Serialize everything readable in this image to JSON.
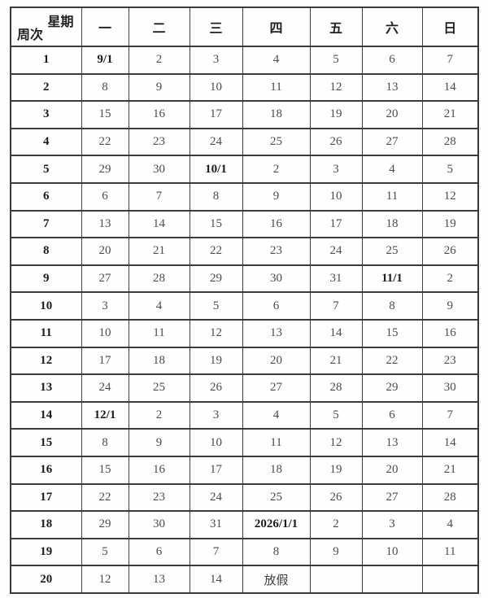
{
  "table": {
    "corner_top_right": "星期",
    "corner_bottom_left": "周次",
    "day_headers": [
      "一",
      "二",
      "三",
      "四",
      "五",
      "六",
      "日"
    ],
    "holiday_label": "放假",
    "colors": {
      "border": "#3a3a3a",
      "text_regular": "#4c4c4c",
      "text_bold": "#1c1c1c",
      "background": "#fdfdfd"
    },
    "rows": [
      {
        "week": "1",
        "days": [
          "9/1",
          "2",
          "3",
          "4",
          "5",
          "6",
          "7"
        ],
        "bold_day": 0
      },
      {
        "week": "2",
        "days": [
          "8",
          "9",
          "10",
          "11",
          "12",
          "13",
          "14"
        ],
        "bold_day": -1
      },
      {
        "week": "3",
        "days": [
          "15",
          "16",
          "17",
          "18",
          "19",
          "20",
          "21"
        ],
        "bold_day": -1
      },
      {
        "week": "4",
        "days": [
          "22",
          "23",
          "24",
          "25",
          "26",
          "27",
          "28"
        ],
        "bold_day": -1
      },
      {
        "week": "5",
        "days": [
          "29",
          "30",
          "10/1",
          "2",
          "3",
          "4",
          "5"
        ],
        "bold_day": 2
      },
      {
        "week": "6",
        "days": [
          "6",
          "7",
          "8",
          "9",
          "10",
          "11",
          "12"
        ],
        "bold_day": -1
      },
      {
        "week": "7",
        "days": [
          "13",
          "14",
          "15",
          "16",
          "17",
          "18",
          "19"
        ],
        "bold_day": -1
      },
      {
        "week": "8",
        "days": [
          "20",
          "21",
          "22",
          "23",
          "24",
          "25",
          "26"
        ],
        "bold_day": -1
      },
      {
        "week": "9",
        "days": [
          "27",
          "28",
          "29",
          "30",
          "31",
          "11/1",
          "2"
        ],
        "bold_day": 5
      },
      {
        "week": "10",
        "days": [
          "3",
          "4",
          "5",
          "6",
          "7",
          "8",
          "9"
        ],
        "bold_day": -1
      },
      {
        "week": "11",
        "days": [
          "10",
          "11",
          "12",
          "13",
          "14",
          "15",
          "16"
        ],
        "bold_day": -1
      },
      {
        "week": "12",
        "days": [
          "17",
          "18",
          "19",
          "20",
          "21",
          "22",
          "23"
        ],
        "bold_day": -1
      },
      {
        "week": "13",
        "days": [
          "24",
          "25",
          "26",
          "27",
          "28",
          "29",
          "30"
        ],
        "bold_day": -1
      },
      {
        "week": "14",
        "days": [
          "12/1",
          "2",
          "3",
          "4",
          "5",
          "6",
          "7"
        ],
        "bold_day": 0
      },
      {
        "week": "15",
        "days": [
          "8",
          "9",
          "10",
          "11",
          "12",
          "13",
          "14"
        ],
        "bold_day": -1
      },
      {
        "week": "16",
        "days": [
          "15",
          "16",
          "17",
          "18",
          "19",
          "20",
          "21"
        ],
        "bold_day": -1
      },
      {
        "week": "17",
        "days": [
          "22",
          "23",
          "24",
          "25",
          "26",
          "27",
          "28"
        ],
        "bold_day": -1
      },
      {
        "week": "18",
        "days": [
          "29",
          "30",
          "31",
          "2026/1/1",
          "2",
          "3",
          "4"
        ],
        "bold_day": 3
      },
      {
        "week": "19",
        "days": [
          "5",
          "6",
          "7",
          "8",
          "9",
          "10",
          "11"
        ],
        "bold_day": -1
      },
      {
        "week": "20",
        "days": [
          "12",
          "13",
          "14",
          "放假",
          "",
          "",
          ""
        ],
        "bold_day": -1
      }
    ]
  }
}
